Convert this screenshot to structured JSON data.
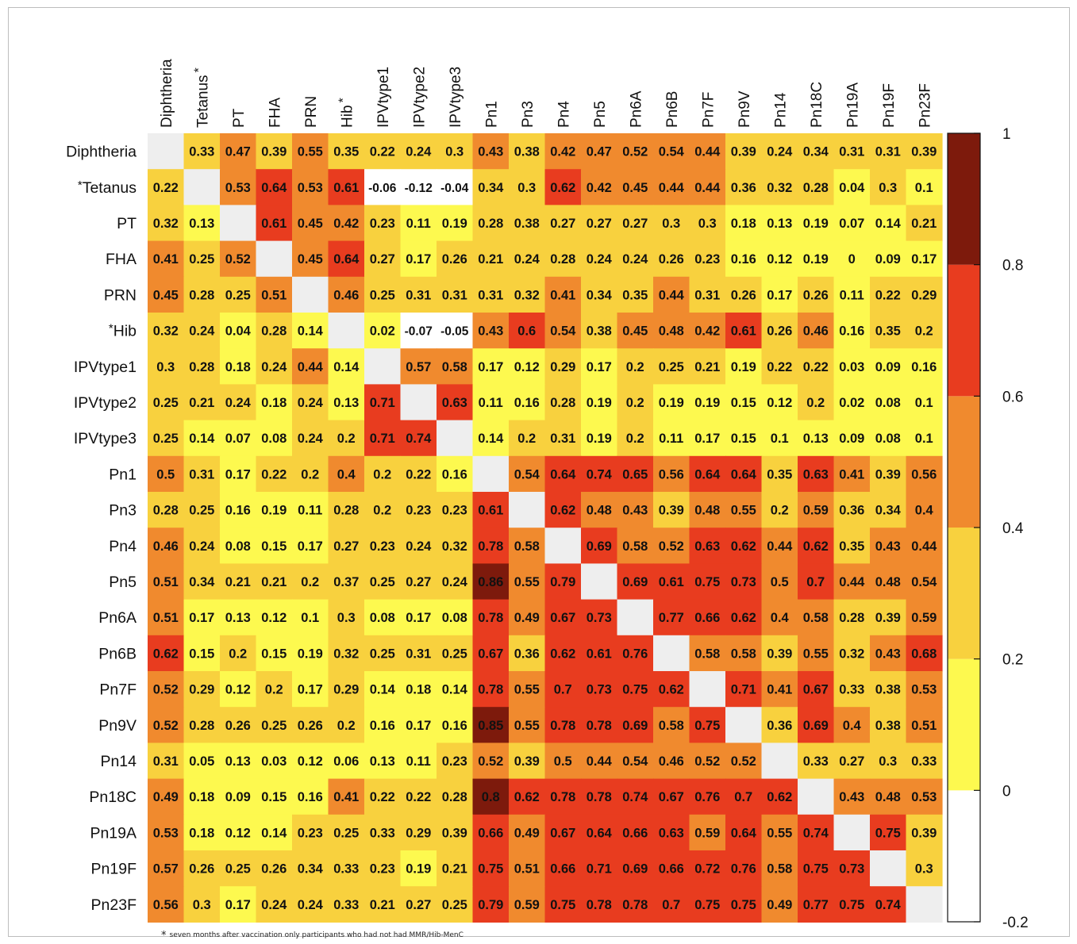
{
  "chart_data": {
    "type": "heatmap",
    "title": "",
    "xlabel": "",
    "ylabel": "",
    "columns": [
      "Diphtheria",
      "Tetanus",
      "PT",
      "FHA",
      "PRN",
      "Hib",
      "IPVtype1",
      "IPVtype2",
      "IPVtype3",
      "Pn1",
      "Pn3",
      "Pn4",
      "Pn5",
      "Pn6A",
      "Pn6B",
      "Pn7F",
      "Pn9V",
      "Pn14",
      "Pn18C",
      "Pn19A",
      "Pn19F",
      "Pn23F"
    ],
    "rows": [
      "Diphtheria",
      "Tetanus",
      "PT",
      "FHA",
      "PRN",
      "Hib",
      "IPVtype1",
      "IPVtype2",
      "IPVtype3",
      "Pn1",
      "Pn3",
      "Pn4",
      "Pn5",
      "Pn6A",
      "Pn6B",
      "Pn7F",
      "Pn9V",
      "Pn14",
      "Pn18C",
      "Pn19A",
      "Pn19F",
      "Pn23F"
    ],
    "starred": [
      "Tetanus",
      "Hib"
    ],
    "star_symbol": "*",
    "values": [
      [
        null,
        0.33,
        0.47,
        0.39,
        0.55,
        0.35,
        0.22,
        0.24,
        0.3,
        0.43,
        0.38,
        0.42,
        0.47,
        0.52,
        0.54,
        0.44,
        0.39,
        0.24,
        0.34,
        0.31,
        0.31,
        0.39
      ],
      [
        0.22,
        null,
        0.53,
        0.64,
        0.53,
        0.61,
        -0.06,
        -0.12,
        -0.04,
        0.34,
        0.3,
        0.62,
        0.42,
        0.45,
        0.44,
        0.44,
        0.36,
        0.32,
        0.28,
        0.04,
        0.3,
        0.1
      ],
      [
        0.32,
        0.13,
        null,
        0.61,
        0.45,
        0.42,
        0.23,
        0.11,
        0.19,
        0.28,
        0.38,
        0.27,
        0.27,
        0.27,
        0.3,
        0.3,
        0.18,
        0.13,
        0.19,
        0.07,
        0.14,
        0.21
      ],
      [
        0.41,
        0.25,
        0.52,
        null,
        0.45,
        0.64,
        0.27,
        0.17,
        0.26,
        0.21,
        0.24,
        0.28,
        0.24,
        0.24,
        0.26,
        0.23,
        0.16,
        0.12,
        0.19,
        0,
        0.09,
        0.17
      ],
      [
        0.45,
        0.28,
        0.25,
        0.51,
        null,
        0.46,
        0.25,
        0.31,
        0.31,
        0.31,
        0.32,
        0.41,
        0.34,
        0.35,
        0.44,
        0.31,
        0.26,
        0.17,
        0.26,
        0.11,
        0.22,
        0.29
      ],
      [
        0.32,
        0.24,
        0.04,
        0.28,
        0.14,
        null,
        0.02,
        -0.07,
        -0.05,
        0.43,
        0.6,
        0.54,
        0.38,
        0.45,
        0.48,
        0.42,
        0.61,
        0.26,
        0.46,
        0.16,
        0.35,
        0.2
      ],
      [
        0.3,
        0.28,
        0.18,
        0.24,
        0.44,
        0.14,
        null,
        0.57,
        0.58,
        0.17,
        0.12,
        0.29,
        0.17,
        0.2,
        0.25,
        0.21,
        0.19,
        0.22,
        0.22,
        0.03,
        0.09,
        0.16
      ],
      [
        0.25,
        0.21,
        0.24,
        0.18,
        0.24,
        0.13,
        0.71,
        null,
        0.63,
        0.11,
        0.16,
        0.28,
        0.19,
        0.2,
        0.19,
        0.19,
        0.15,
        0.12,
        0.2,
        0.02,
        0.08,
        0.1
      ],
      [
        0.25,
        0.14,
        0.07,
        0.08,
        0.24,
        0.2,
        0.71,
        0.74,
        null,
        0.14,
        0.2,
        0.31,
        0.19,
        0.2,
        0.11,
        0.17,
        0.15,
        0.1,
        0.13,
        0.09,
        0.08,
        0.1
      ],
      [
        0.5,
        0.31,
        0.17,
        0.22,
        0.2,
        0.4,
        0.2,
        0.22,
        0.16,
        null,
        0.54,
        0.64,
        0.74,
        0.65,
        0.56,
        0.64,
        0.64,
        0.35,
        0.63,
        0.41,
        0.39,
        0.56
      ],
      [
        0.28,
        0.25,
        0.16,
        0.19,
        0.11,
        0.28,
        0.2,
        0.23,
        0.23,
        0.61,
        null,
        0.62,
        0.48,
        0.43,
        0.39,
        0.48,
        0.55,
        0.2,
        0.59,
        0.36,
        0.34,
        0.4
      ],
      [
        0.46,
        0.24,
        0.08,
        0.15,
        0.17,
        0.27,
        0.23,
        0.24,
        0.32,
        0.78,
        0.58,
        null,
        0.69,
        0.58,
        0.52,
        0.63,
        0.62,
        0.44,
        0.62,
        0.35,
        0.43,
        0.44
      ],
      [
        0.51,
        0.34,
        0.21,
        0.21,
        0.2,
        0.37,
        0.25,
        0.27,
        0.24,
        0.86,
        0.55,
        0.79,
        null,
        0.69,
        0.61,
        0.75,
        0.73,
        0.5,
        0.7,
        0.44,
        0.48,
        0.54
      ],
      [
        0.51,
        0.17,
        0.13,
        0.12,
        0.1,
        0.3,
        0.08,
        0.17,
        0.08,
        0.78,
        0.49,
        0.67,
        0.73,
        null,
        0.77,
        0.66,
        0.62,
        0.4,
        0.58,
        0.28,
        0.39,
        0.59
      ],
      [
        0.62,
        0.15,
        0.2,
        0.15,
        0.19,
        0.32,
        0.25,
        0.31,
        0.25,
        0.67,
        0.36,
        0.62,
        0.61,
        0.76,
        null,
        0.58,
        0.58,
        0.39,
        0.55,
        0.32,
        0.43,
        0.68
      ],
      [
        0.52,
        0.29,
        0.12,
        0.2,
        0.17,
        0.29,
        0.14,
        0.18,
        0.14,
        0.78,
        0.55,
        0.7,
        0.73,
        0.75,
        0.62,
        null,
        0.71,
        0.41,
        0.67,
        0.33,
        0.38,
        0.53
      ],
      [
        0.52,
        0.28,
        0.26,
        0.25,
        0.26,
        0.2,
        0.16,
        0.17,
        0.16,
        0.85,
        0.55,
        0.78,
        0.78,
        0.69,
        0.58,
        0.75,
        null,
        0.36,
        0.69,
        0.4,
        0.38,
        0.51
      ],
      [
        0.31,
        0.05,
        0.13,
        0.03,
        0.12,
        0.06,
        0.13,
        0.11,
        0.23,
        0.52,
        0.39,
        0.5,
        0.44,
        0.54,
        0.46,
        0.52,
        0.52,
        null,
        0.33,
        0.27,
        0.3,
        0.33
      ],
      [
        0.49,
        0.18,
        0.09,
        0.15,
        0.16,
        0.41,
        0.22,
        0.22,
        0.28,
        0.8,
        0.62,
        0.78,
        0.78,
        0.74,
        0.67,
        0.76,
        0.7,
        0.62,
        null,
        0.43,
        0.48,
        0.53
      ],
      [
        0.53,
        0.18,
        0.12,
        0.14,
        0.23,
        0.25,
        0.33,
        0.29,
        0.39,
        0.66,
        0.49,
        0.67,
        0.64,
        0.66,
        0.63,
        0.59,
        0.64,
        0.55,
        0.74,
        null,
        0.75,
        0.39
      ],
      [
        0.57,
        0.26,
        0.25,
        0.26,
        0.34,
        0.33,
        0.23,
        0.19,
        0.21,
        0.75,
        0.51,
        0.66,
        0.71,
        0.69,
        0.66,
        0.72,
        0.76,
        0.58,
        0.75,
        0.73,
        null,
        0.3
      ],
      [
        0.56,
        0.3,
        0.17,
        0.24,
        0.24,
        0.33,
        0.21,
        0.27,
        0.25,
        0.79,
        0.59,
        0.75,
        0.78,
        0.78,
        0.7,
        0.75,
        0.75,
        0.49,
        0.77,
        0.75,
        0.74,
        null
      ]
    ],
    "colorbar": {
      "min": -0.2,
      "max": 1,
      "ticks": [
        {
          "value": 1,
          "label": "1"
        },
        {
          "value": 0.8,
          "label": "0.8"
        },
        {
          "value": 0.6,
          "label": "0.6"
        },
        {
          "value": 0.4,
          "label": "0.4"
        },
        {
          "value": 0.2,
          "label": "0.2"
        },
        {
          "value": 0,
          "label": "0"
        },
        {
          "value": -0.2,
          "label": "-0.2"
        }
      ],
      "bins": [
        {
          "from": -0.2,
          "to": 0,
          "color": "#ffffff"
        },
        {
          "from": 0,
          "to": 0.2,
          "color": "#fdf94f"
        },
        {
          "from": 0.2,
          "to": 0.4,
          "color": "#f8d13e"
        },
        {
          "from": 0.4,
          "to": 0.6,
          "color": "#f08a2e"
        },
        {
          "from": 0.6,
          "to": 0.8,
          "color": "#e83c1f"
        },
        {
          "from": 0.8,
          "to": 1,
          "color": "#7d1a0c"
        }
      ]
    },
    "diagonal_color": "#eeeeee",
    "grid": false,
    "legend": "right"
  },
  "footnote": {
    "symbol": "*",
    "text": "seven months after vaccination only participants who had not had MMR/Hib-MenC"
  }
}
